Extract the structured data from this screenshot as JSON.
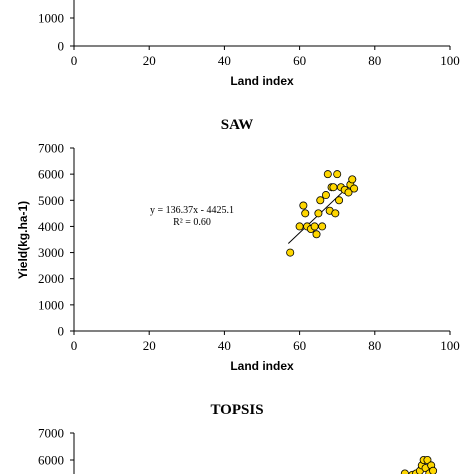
{
  "colors": {
    "marker_fill": "#FFD700",
    "marker_stroke": "#000000",
    "axis": "#000000"
  },
  "chart_data": [
    {
      "type": "scatter",
      "title": "",
      "xlabel": "Land index",
      "ylabel": "",
      "xlim": [
        0,
        100
      ],
      "x_ticks": [
        "0",
        "20",
        "40",
        "60",
        "80",
        "100"
      ],
      "y_ticks": [
        "0",
        "1000"
      ],
      "points": [],
      "partial": "top cropped"
    },
    {
      "type": "scatter",
      "title": "SAW",
      "xlabel": "Land index",
      "ylabel": "Yield(kg.ha-1)",
      "xlim": [
        0,
        100
      ],
      "ylim": [
        0,
        7000
      ],
      "x_ticks": [
        "0",
        "20",
        "40",
        "60",
        "80",
        "100"
      ],
      "y_ticks": [
        "0",
        "1000",
        "2000",
        "3000",
        "4000",
        "5000",
        "6000",
        "7000"
      ],
      "equation": "y = 136.37x - 4425.1",
      "r_squared": "R² = 0.60",
      "trendline": {
        "slope": 136.37,
        "intercept": -4425.1,
        "x_range": [
          57,
          75
        ]
      },
      "points": [
        {
          "x": 57.5,
          "y": 3000
        },
        {
          "x": 60,
          "y": 4000
        },
        {
          "x": 61,
          "y": 4800
        },
        {
          "x": 61.5,
          "y": 4500
        },
        {
          "x": 62,
          "y": 4000
        },
        {
          "x": 63,
          "y": 3900
        },
        {
          "x": 64,
          "y": 4000
        },
        {
          "x": 64.5,
          "y": 3700
        },
        {
          "x": 65,
          "y": 4500
        },
        {
          "x": 65.5,
          "y": 5000
        },
        {
          "x": 66,
          "y": 4000
        },
        {
          "x": 67,
          "y": 5200
        },
        {
          "x": 67.5,
          "y": 6000
        },
        {
          "x": 68,
          "y": 4600
        },
        {
          "x": 68.5,
          "y": 5500
        },
        {
          "x": 69,
          "y": 5500
        },
        {
          "x": 69.5,
          "y": 4500
        },
        {
          "x": 70,
          "y": 6000
        },
        {
          "x": 70.5,
          "y": 5000
        },
        {
          "x": 71,
          "y": 5500
        },
        {
          "x": 72,
          "y": 5400
        },
        {
          "x": 73,
          "y": 5300
        },
        {
          "x": 73.5,
          "y": 5600
        },
        {
          "x": 74,
          "y": 5800
        },
        {
          "x": 74.5,
          "y": 5450
        }
      ]
    },
    {
      "type": "scatter",
      "title": "TOPSIS",
      "xlabel": "",
      "ylabel": "",
      "ylim": [
        0,
        7000
      ],
      "y_ticks": [
        "6000",
        "7000"
      ],
      "partial": "bottom cropped",
      "points": [
        {
          "x": 88,
          "y": 5500
        },
        {
          "x": 90,
          "y": 5450
        },
        {
          "x": 91,
          "y": 5500
        },
        {
          "x": 92,
          "y": 5600
        },
        {
          "x": 92.5,
          "y": 5800
        },
        {
          "x": 93,
          "y": 6000
        },
        {
          "x": 93.5,
          "y": 5700
        },
        {
          "x": 94,
          "y": 6000
        },
        {
          "x": 94.5,
          "y": 5500
        },
        {
          "x": 95,
          "y": 5800
        },
        {
          "x": 95.5,
          "y": 5600
        }
      ]
    }
  ]
}
